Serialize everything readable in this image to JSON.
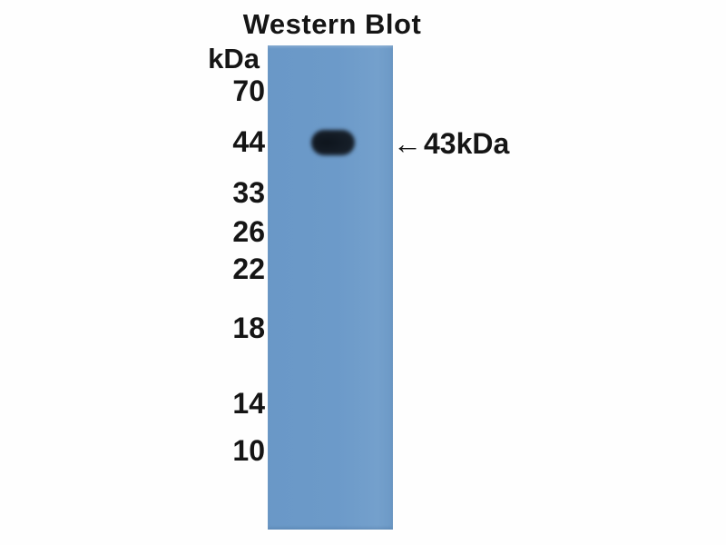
{
  "figure": {
    "title": "Western Blot",
    "unit_label": "kDa",
    "ladder": [
      "70",
      "44",
      "33",
      "26",
      "22",
      "18",
      "14",
      "10"
    ],
    "band_annotation": {
      "arrow": "←",
      "label": "43kDa"
    }
  },
  "colors": {
    "lane": "#6b9ac9",
    "band": "#141c26",
    "text": "#151515",
    "background": "#fefefe"
  }
}
